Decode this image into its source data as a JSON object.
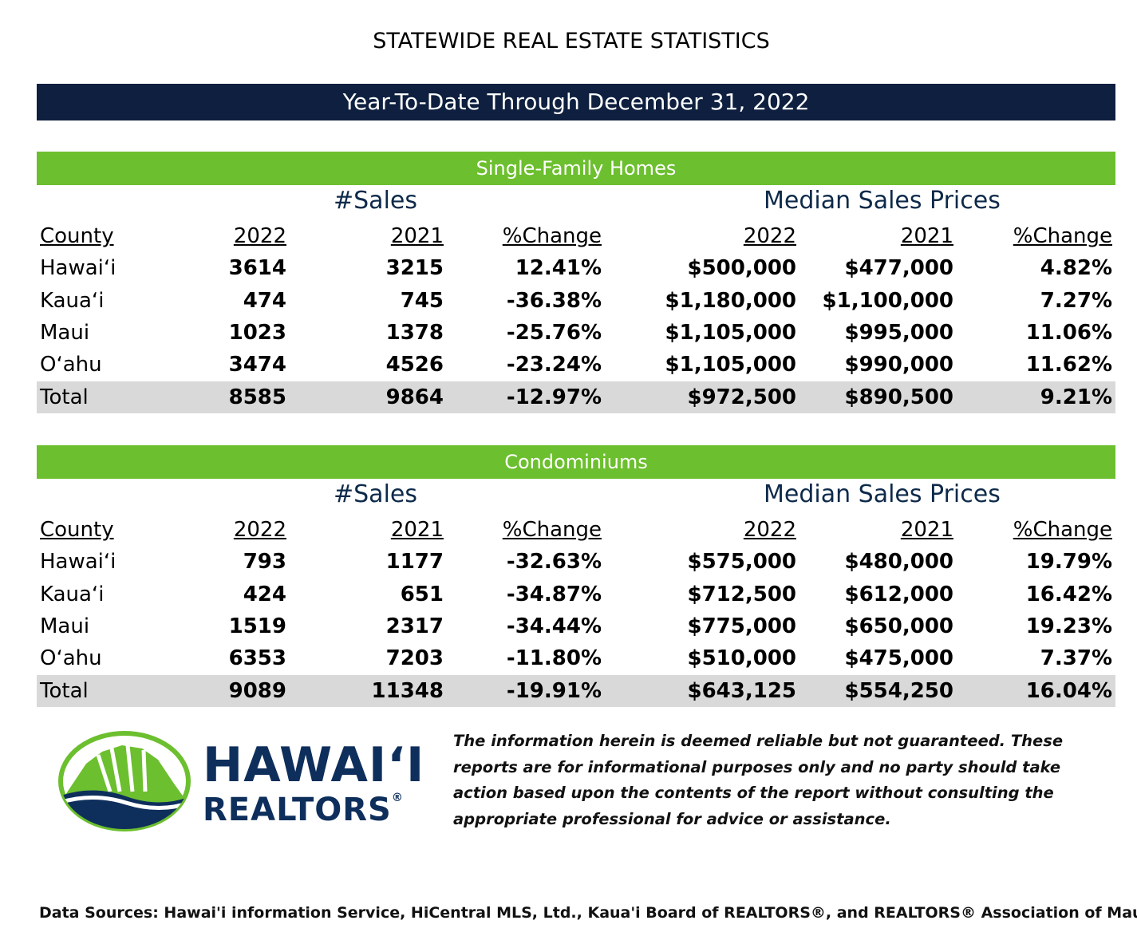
{
  "title": "STATEWIDE REAL ESTATE STATISTICS",
  "period": "Year-To-Date Through December 31, 2022",
  "colors": {
    "navy": "#0e1f3f",
    "green": "#6cbf2e",
    "total_row": "#d9d9d9"
  },
  "columns": {
    "sales_group": "#Sales",
    "price_group": "Median Sales Prices",
    "county": "County",
    "y2022": "2022",
    "y2021": "2021",
    "change": "%Change"
  },
  "sections": [
    {
      "name": "Single-Family Homes",
      "rows": [
        {
          "county": "Hawaiʻi",
          "sales_2022": "3614",
          "sales_2021": "3215",
          "sales_change": "12.41%",
          "price_2022": "$500,000",
          "price_2021": "$477,000",
          "price_change": "4.82%"
        },
        {
          "county": "Kauaʻi",
          "sales_2022": "474",
          "sales_2021": "745",
          "sales_change": "-36.38%",
          "price_2022": "$1,180,000",
          "price_2021": "$1,100,000",
          "price_change": "7.27%"
        },
        {
          "county": "Maui",
          "sales_2022": "1023",
          "sales_2021": "1378",
          "sales_change": "-25.76%",
          "price_2022": "$1,105,000",
          "price_2021": "$995,000",
          "price_change": "11.06%"
        },
        {
          "county": "Oʻahu",
          "sales_2022": "3474",
          "sales_2021": "4526",
          "sales_change": "-23.24%",
          "price_2022": "$1,105,000",
          "price_2021": "$990,000",
          "price_change": "11.62%"
        },
        {
          "county": "Total",
          "sales_2022": "8585",
          "sales_2021": "9864",
          "sales_change": "-12.97%",
          "price_2022": "$972,500",
          "price_2021": "$890,500",
          "price_change": "9.21%"
        }
      ]
    },
    {
      "name": "Condominiums",
      "rows": [
        {
          "county": "Hawaiʻi",
          "sales_2022": "793",
          "sales_2021": "1177",
          "sales_change": "-32.63%",
          "price_2022": "$575,000",
          "price_2021": "$480,000",
          "price_change": "19.79%"
        },
        {
          "county": "Kauaʻi",
          "sales_2022": "424",
          "sales_2021": "651",
          "sales_change": "-34.87%",
          "price_2022": "$712,500",
          "price_2021": "$612,000",
          "price_change": "16.42%"
        },
        {
          "county": "Maui",
          "sales_2022": "1519",
          "sales_2021": "2317",
          "sales_change": "-34.44%",
          "price_2022": "$775,000",
          "price_2021": "$650,000",
          "price_change": "19.23%"
        },
        {
          "county": "Oʻahu",
          "sales_2022": "6353",
          "sales_2021": "7203",
          "sales_change": "-11.80%",
          "price_2022": "$510,000",
          "price_2021": "$475,000",
          "price_change": "7.37%"
        },
        {
          "county": "Total",
          "sales_2022": "9089",
          "sales_2021": "11348",
          "sales_change": "-19.91%",
          "price_2022": "$643,125",
          "price_2021": "$554,250",
          "price_change": "16.04%"
        }
      ]
    }
  ],
  "logo": {
    "line1": "HAWAIʻI",
    "line2": "REALTORS",
    "mark": "®"
  },
  "disclaimer": "The information herein is deemed reliable but not guaranteed. These reports are for informational purposes only and no party should take action based upon the contents of the report without consulting the appropriate professional for advice or assistance.",
  "sources": "Data Sources: Hawai'i information Service, HiCentral MLS, Ltd., Kaua'i Board of REALTORS®, and REALTORS® Association of Maui."
}
